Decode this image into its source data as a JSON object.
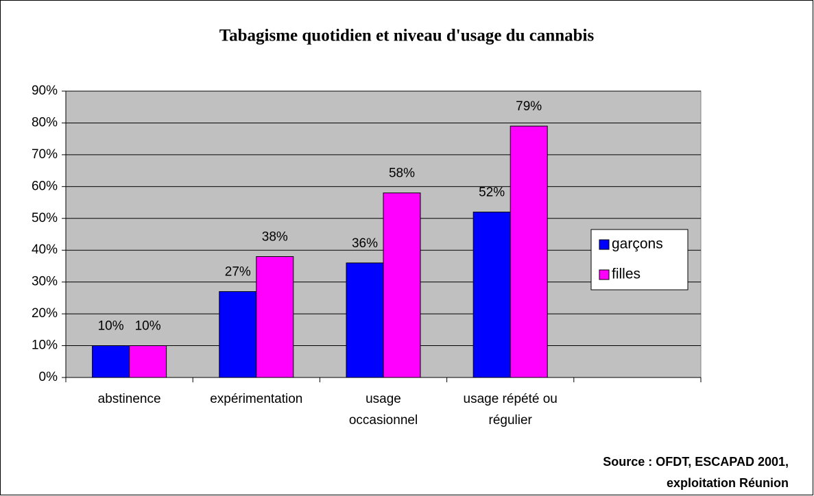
{
  "chart_data": {
    "type": "bar",
    "title": "Tabagisme quotidien et niveau d'usage du cannabis",
    "categories": [
      "abstinence",
      "expérimentation",
      "usage occasionnel",
      "usage répété ou régulier",
      null
    ],
    "series": [
      {
        "name": "garçons",
        "color": "#0000ff",
        "values": [
          10,
          27,
          36,
          52,
          null
        ],
        "value_labels": [
          "10%",
          "27%",
          "36%",
          "52%",
          null
        ]
      },
      {
        "name": "filles",
        "color": "#ff00ff",
        "values": [
          10,
          38,
          58,
          79,
          null
        ],
        "value_labels": [
          "10%",
          "38%",
          "58%",
          "79%",
          null
        ]
      }
    ],
    "ylim": [
      0,
      90
    ],
    "yticks": [
      {
        "value": 0,
        "label": "0%"
      },
      {
        "value": 10,
        "label": "10%"
      },
      {
        "value": 20,
        "label": "20%"
      },
      {
        "value": 30,
        "label": "30%"
      },
      {
        "value": 40,
        "label": "40%"
      },
      {
        "value": 50,
        "label": "50%"
      },
      {
        "value": 60,
        "label": "60%"
      },
      {
        "value": 70,
        "label": "70%"
      },
      {
        "value": 80,
        "label": "80%"
      },
      {
        "value": 90,
        "label": "90%"
      }
    ],
    "grid": true,
    "legend": "right",
    "source": [
      "Source : OFDT, ESCAPAD 2001,",
      "exploitation Réunion"
    ]
  }
}
